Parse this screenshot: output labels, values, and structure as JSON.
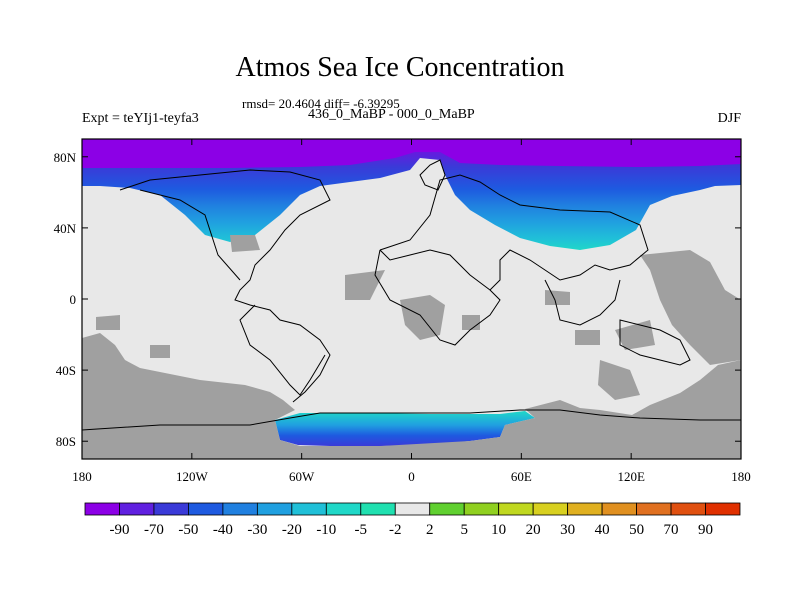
{
  "title": "Atmos Sea Ice Concentration",
  "stats": "rmsd= 20.4604 diff= -6.39295",
  "subtitle": "436_0_MaBP - 000_0_MaBP",
  "experiment": "Expt = teYIj1-teyfa3",
  "season": "DJF",
  "map": {
    "lon_range": [
      -180,
      180
    ],
    "lat_range": [
      -90,
      90
    ],
    "lon_ticks": [
      {
        "value": -180,
        "label": "180"
      },
      {
        "value": -120,
        "label": "120W"
      },
      {
        "value": -60,
        "label": "60W"
      },
      {
        "value": 0,
        "label": "0"
      },
      {
        "value": 60,
        "label": "60E"
      },
      {
        "value": 120,
        "label": "120E"
      },
      {
        "value": 180,
        "label": "180"
      }
    ],
    "lat_ticks": [
      {
        "value": 80,
        "label": "80N"
      },
      {
        "value": 40,
        "label": "40N"
      },
      {
        "value": 0,
        "label": "0"
      },
      {
        "value": -40,
        "label": "40S"
      },
      {
        "value": -80,
        "label": "80S"
      }
    ],
    "land_color": "#a0a0a0",
    "nochange_color": "#e8e8e8"
  },
  "colorbar": {
    "colors": [
      "#8c00e6",
      "#6020e0",
      "#3a3ad8",
      "#1e5ae0",
      "#2080e0",
      "#20a0e0",
      "#20c0d8",
      "#20d8c8",
      "#20e0b0",
      "#e8e8e8",
      "#60d030",
      "#90d020",
      "#c0d820",
      "#d8d020",
      "#e0b020",
      "#e09020",
      "#e07020",
      "#e05010",
      "#e03000"
    ],
    "labels": [
      "-90",
      "-70",
      "-50",
      "-40",
      "-30",
      "-20",
      "-10",
      "-5",
      "-2",
      "2",
      "5",
      "10",
      "20",
      "30",
      "40",
      "50",
      "70",
      "90"
    ]
  }
}
